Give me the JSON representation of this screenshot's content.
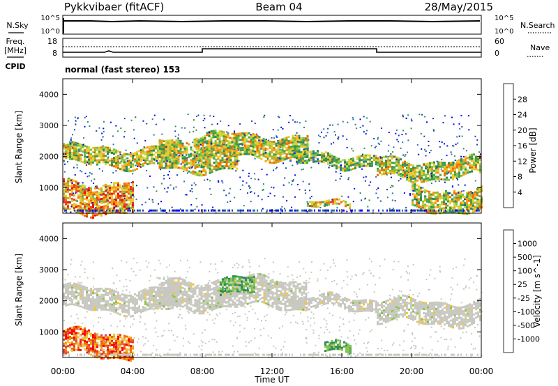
{
  "header": {
    "station": "Pykkvibaer (fitACF)",
    "beam": "Beam 04",
    "date": "28/May/2015"
  },
  "noise_panel": {
    "left_label": "N.Sky",
    "right_label": "N.Search",
    "left_ticks": [
      "10^5",
      "10^0"
    ],
    "right_ticks": [
      "10^5",
      "10^0"
    ]
  },
  "freq_panel": {
    "left_label_1": "Freq.",
    "left_label_2": "[MHz]",
    "right_label": "Nave",
    "left_ticks": [
      "18",
      "8"
    ],
    "right_ticks": [
      "60",
      "0"
    ],
    "cpid_label": "CPID",
    "cpid_text": "normal (fast stereo) 153"
  },
  "chart_data": [
    {
      "type": "heatmap",
      "title": "Power",
      "ylabel": "Slant Range [km]",
      "xlabel": "",
      "ylim": [
        180,
        4500
      ],
      "xlim": [
        0,
        24
      ],
      "yticks": [
        "4000",
        "3000",
        "2000",
        "1000"
      ],
      "colorbar": {
        "label": "Power [dB]",
        "ticks": [
          "28",
          "24",
          "20",
          "16",
          "12",
          "8",
          "4"
        ],
        "colors": [
          "#0000ff",
          "#1f3fa8",
          "#2a6fb0",
          "#2e8b57",
          "#43a047",
          "#7cc242",
          "#c8d83a",
          "#f4c430",
          "#f39c12",
          "#ef6c00",
          "#e53935",
          "#ff0000"
        ]
      },
      "echo_bands": [
        {
          "t_start": 0.0,
          "t_end": 6.5,
          "range_low": 1700,
          "range_high": 2300,
          "power": 14
        },
        {
          "t_start": 5.5,
          "t_end": 10.0,
          "range_low": 1600,
          "range_high": 2500,
          "power": 16
        },
        {
          "t_start": 7.5,
          "t_end": 14.0,
          "range_low": 2000,
          "range_high": 2700,
          "power": 15
        },
        {
          "t_start": 13.0,
          "t_end": 18.0,
          "range_low": 1750,
          "range_high": 2100,
          "power": 13
        },
        {
          "t_start": 18.0,
          "t_end": 24.0,
          "range_low": 1300,
          "range_high": 1900,
          "power": 15
        },
        {
          "t_start": 0.0,
          "t_end": 4.0,
          "range_low": 250,
          "range_high": 1200,
          "power": 20
        },
        {
          "t_start": 14.0,
          "t_end": 16.5,
          "range_low": 300,
          "range_high": 500,
          "power": 18
        },
        {
          "t_start": 20.0,
          "t_end": 24.0,
          "range_low": 300,
          "range_high": 1000,
          "power": 14
        }
      ]
    },
    {
      "type": "heatmap",
      "title": "Velocity",
      "ylabel": "Slant Range [km]",
      "xlabel": "Time UT",
      "ylim": [
        180,
        4500
      ],
      "xlim": [
        0,
        24
      ],
      "yticks": [
        "4000",
        "3000",
        "2000",
        "1000"
      ],
      "xticks": [
        "00:00",
        "04:00",
        "08:00",
        "12:00",
        "16:00",
        "20:00",
        "00:00"
      ],
      "colorbar": {
        "label": "Velocity [m s^-1]",
        "ticks": [
          "1000",
          "500",
          "100",
          "25",
          "-25",
          "-100",
          "-500",
          "-1000"
        ],
        "colors": [
          "#2040a0",
          "#2f6fb3",
          "#2e8b57",
          "#4caf50",
          "#8bc34a",
          "#c8c8c0",
          "#c8c8c0",
          "#f4c430",
          "#f39c12",
          "#ef6c00",
          "#e53935",
          "#ff0000"
        ]
      },
      "echo_bands": [
        {
          "t_start": 0.0,
          "t_end": 6.5,
          "range_low": 1700,
          "range_high": 2400,
          "velocity": 0
        },
        {
          "t_start": 5.5,
          "t_end": 14.0,
          "range_low": 1800,
          "range_high": 2700,
          "velocity": 0
        },
        {
          "t_start": 13.0,
          "t_end": 18.0,
          "range_low": 1750,
          "range_high": 2100,
          "velocity": 0
        },
        {
          "t_start": 18.0,
          "t_end": 24.0,
          "range_low": 1300,
          "range_high": 2000,
          "velocity": 0
        },
        {
          "t_start": 0.0,
          "t_end": 4.0,
          "range_low": 250,
          "range_high": 1000,
          "velocity": -300
        },
        {
          "t_start": 9.0,
          "t_end": 11.0,
          "range_low": 2200,
          "range_high": 2700,
          "velocity": 150
        },
        {
          "t_start": 15.0,
          "t_end": 16.5,
          "range_low": 300,
          "range_high": 600,
          "velocity": 60
        }
      ]
    }
  ]
}
